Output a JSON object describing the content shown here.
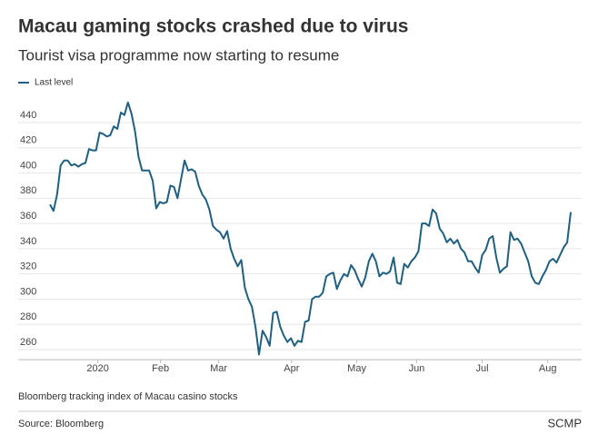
{
  "chart_data": {
    "type": "line",
    "title": "Macau gaming stocks crashed due to virus",
    "subtitle": "Tourist visa programme now starting to resume",
    "caption": "Bloomberg tracking index of Macau casino stocks",
    "source": "Source: Bloomberg",
    "brand": "SCMP",
    "legend": "top-left",
    "grid": true,
    "series": [
      {
        "name": "Last level",
        "color": "#1f5f82",
        "values": [
          375,
          370,
          383,
          406,
          410,
          410,
          406,
          407,
          405,
          407,
          408,
          419,
          418,
          418,
          432,
          431,
          429,
          430,
          437,
          435,
          448,
          446,
          456,
          447,
          433,
          413,
          402,
          402,
          402,
          394,
          372,
          377,
          376,
          377,
          390,
          389,
          380,
          395,
          410,
          402,
          403,
          401,
          390,
          383,
          379,
          371,
          358,
          355,
          353,
          348,
          354,
          340,
          332,
          326,
          331,
          309,
          300,
          294,
          278,
          256,
          275,
          270,
          263,
          289,
          290,
          278,
          271,
          266,
          269,
          263,
          267,
          266,
          282,
          283,
          300,
          302,
          302,
          305,
          318,
          320,
          321,
          308,
          315,
          320,
          318,
          327,
          323,
          316,
          310,
          317,
          330,
          336,
          330,
          318,
          321,
          320,
          322,
          333,
          313,
          312,
          328,
          325,
          330,
          333,
          338,
          360,
          360,
          358,
          371,
          368,
          356,
          352,
          345,
          348,
          344,
          347,
          340,
          337,
          330,
          330,
          325,
          321,
          335,
          339,
          348,
          350,
          333,
          321,
          324,
          326,
          353,
          347,
          348,
          344,
          337,
          330,
          318,
          313,
          312,
          318,
          323,
          330,
          332,
          329,
          335,
          341,
          345,
          369
        ]
      }
    ],
    "xlim": [
      0,
      147
    ],
    "xticks": [
      {
        "value": 13.5,
        "label": "2020"
      },
      {
        "value": 31.2,
        "label": "Feb"
      },
      {
        "value": 47.6,
        "label": "Mar"
      },
      {
        "value": 68.2,
        "label": "Apr"
      },
      {
        "value": 86.6,
        "label": "May"
      },
      {
        "value": 103.5,
        "label": "Jun"
      },
      {
        "value": 122,
        "label": "Jul"
      },
      {
        "value": 140.5,
        "label": "Aug"
      }
    ],
    "ylim": [
      252,
      456
    ],
    "yticks": [
      260,
      280,
      300,
      320,
      340,
      360,
      380,
      400,
      420,
      440
    ]
  }
}
